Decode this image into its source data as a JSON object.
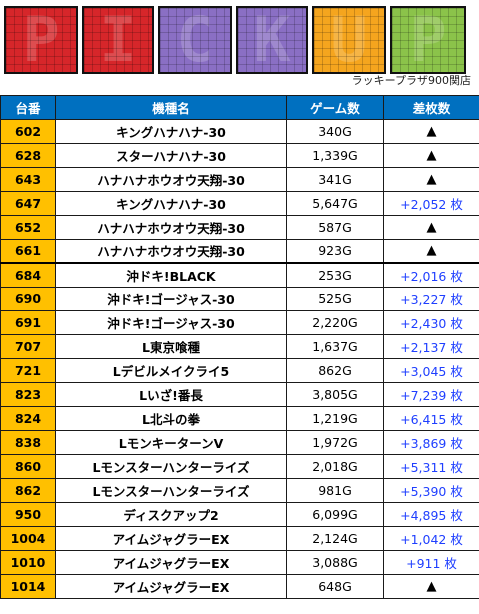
{
  "banner": {
    "letters": [
      {
        "char": "P",
        "color": "#d6262a"
      },
      {
        "char": "I",
        "color": "#d6262a"
      },
      {
        "char": "C",
        "color": "#8a6fc4"
      },
      {
        "char": "K",
        "color": "#8a6fc4"
      },
      {
        "char": "U",
        "color": "#f5a51e"
      },
      {
        "char": "P",
        "color": "#8bc34a"
      }
    ],
    "subtitle": "ラッキープラザ900関店"
  },
  "table": {
    "headers": [
      "台番",
      "機種名",
      "ゲーム数",
      "差枚数"
    ],
    "rows": [
      {
        "no": "602",
        "name": "キングハナハナ-30",
        "games": "340G",
        "diff": "▲"
      },
      {
        "no": "628",
        "name": "スターハナハナ-30",
        "games": "1,339G",
        "diff": "▲"
      },
      {
        "no": "643",
        "name": "ハナハナホウオウ天翔-30",
        "games": "341G",
        "diff": "▲"
      },
      {
        "no": "647",
        "name": "キングハナハナ-30",
        "games": "5,647G",
        "diff": "+2,052 枚"
      },
      {
        "no": "652",
        "name": "ハナハナホウオウ天翔-30",
        "games": "587G",
        "diff": "▲"
      },
      {
        "no": "661",
        "name": "ハナハナホウオウ天翔-30",
        "games": "923G",
        "diff": "▲"
      },
      {
        "no": "684",
        "name": "沖ドキ!BLACK",
        "games": "253G",
        "diff": "+2,016 枚"
      },
      {
        "no": "690",
        "name": "沖ドキ!ゴージャス-30",
        "games": "525G",
        "diff": "+3,227 枚"
      },
      {
        "no": "691",
        "name": "沖ドキ!ゴージャス-30",
        "games": "2,220G",
        "diff": "+2,430 枚"
      },
      {
        "no": "707",
        "name": "L東京喰種",
        "games": "1,637G",
        "diff": "+2,137 枚"
      },
      {
        "no": "721",
        "name": "Lデビルメイクライ5",
        "games": "862G",
        "diff": "+3,045 枚"
      },
      {
        "no": "823",
        "name": "Lいざ!番長",
        "games": "3,805G",
        "diff": "+7,239 枚"
      },
      {
        "no": "824",
        "name": "L北斗の拳",
        "games": "1,219G",
        "diff": "+6,415 枚"
      },
      {
        "no": "838",
        "name": "LモンキーターンV",
        "games": "1,972G",
        "diff": "+3,869 枚"
      },
      {
        "no": "860",
        "name": "Lモンスターハンターライズ",
        "games": "2,018G",
        "diff": "+5,311 枚"
      },
      {
        "no": "862",
        "name": "Lモンスターハンターライズ",
        "games": "981G",
        "diff": "+5,390 枚"
      },
      {
        "no": "950",
        "name": "ディスクアップ2",
        "games": "6,099G",
        "diff": "+4,895 枚"
      },
      {
        "no": "1004",
        "name": "アイムジャグラーEX",
        "games": "2,124G",
        "diff": "+1,042 枚"
      },
      {
        "no": "1010",
        "name": "アイムジャグラーEX",
        "games": "3,088G",
        "diff": "+911 枚"
      },
      {
        "no": "1014",
        "name": "アイムジャグラーEX",
        "games": "648G",
        "diff": "▲"
      }
    ]
  }
}
